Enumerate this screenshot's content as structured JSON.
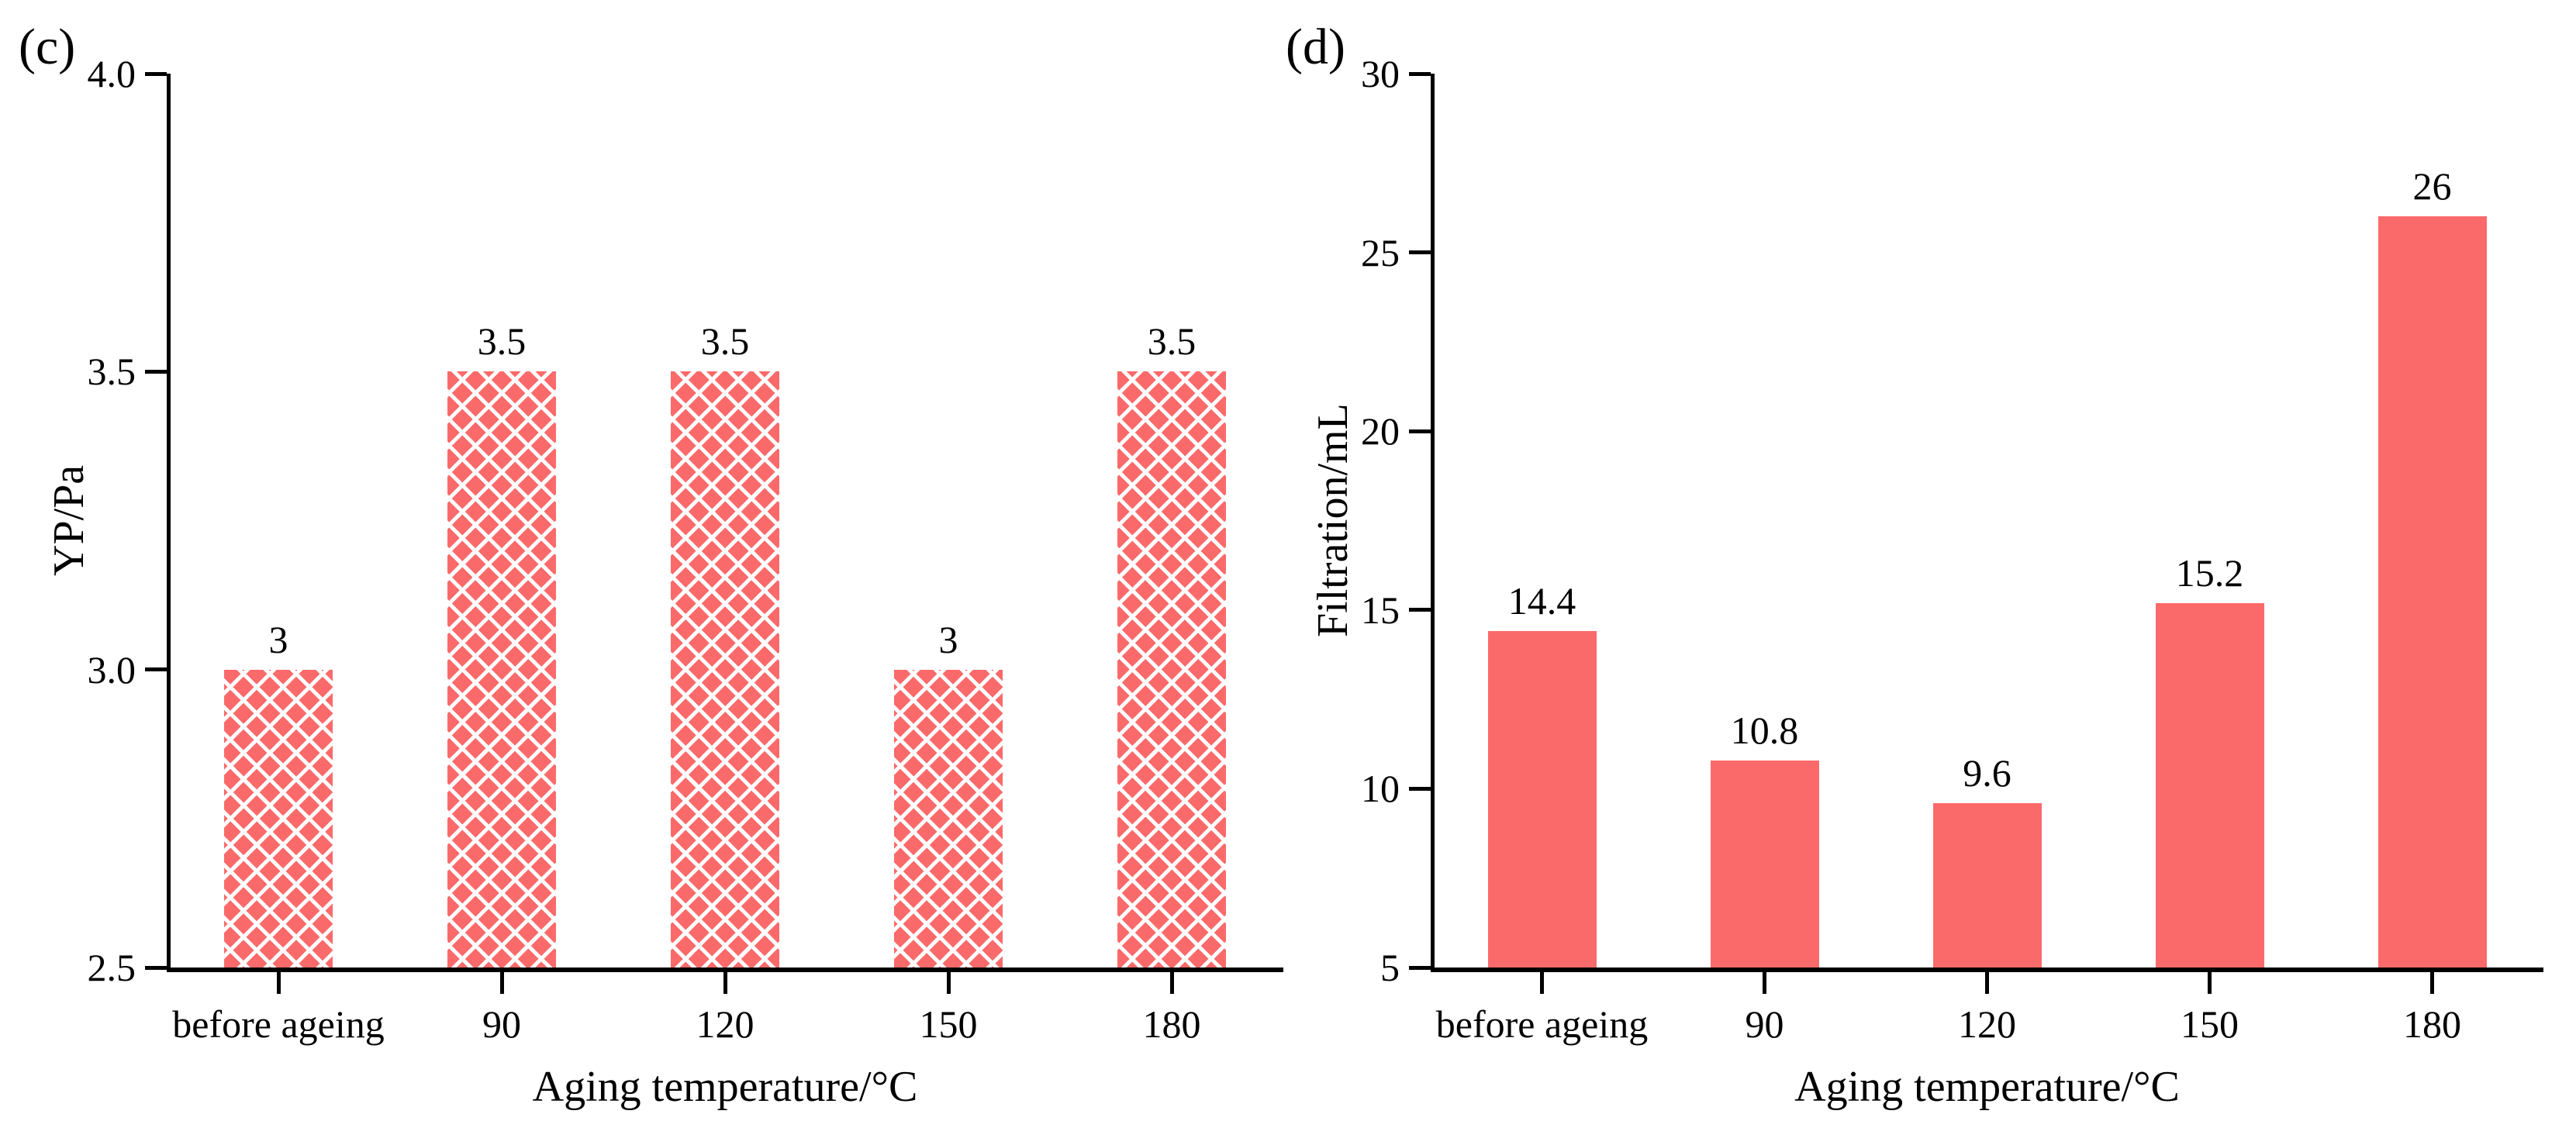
{
  "figure": {
    "background": "#ffffff",
    "bar_color": "#FB6A6A",
    "hatch_line_color": "#ffffff",
    "axis_color": "#000000",
    "text_color": "#000000"
  },
  "chart_data": [
    {
      "type": "bar",
      "panel_label": "(c)",
      "title": "",
      "categories": [
        "before ageing",
        "90",
        "120",
        "150",
        "180"
      ],
      "values": [
        3,
        3.5,
        3.5,
        3,
        3.5
      ],
      "value_labels": [
        "3",
        "3.5",
        "3.5",
        "3",
        "3.5"
      ],
      "xlabel": "Aging temperature/°C",
      "ylabel": "YP/Pa",
      "ylim": [
        2.5,
        4.0
      ],
      "yticks": [
        2.5,
        3.0,
        3.5,
        4.0
      ],
      "ytick_labels": [
        "2.5",
        "3.0",
        "3.5",
        "4.0"
      ],
      "bar_style": "crosshatch",
      "grid": false,
      "legend": false
    },
    {
      "type": "bar",
      "panel_label": "(d)",
      "title": "",
      "categories": [
        "before ageing",
        "90",
        "120",
        "150",
        "180"
      ],
      "values": [
        14.4,
        10.8,
        9.6,
        15.2,
        26
      ],
      "value_labels": [
        "14.4",
        "10.8",
        "9.6",
        "15.2",
        "26"
      ],
      "xlabel": "Aging temperature/°C",
      "ylabel": "Filtration/mL",
      "ylim": [
        5,
        30
      ],
      "yticks": [
        5,
        10,
        15,
        20,
        25,
        30
      ],
      "ytick_labels": [
        "5",
        "10",
        "15",
        "20",
        "25",
        "30"
      ],
      "bar_style": "solid",
      "grid": false,
      "legend": false
    }
  ]
}
